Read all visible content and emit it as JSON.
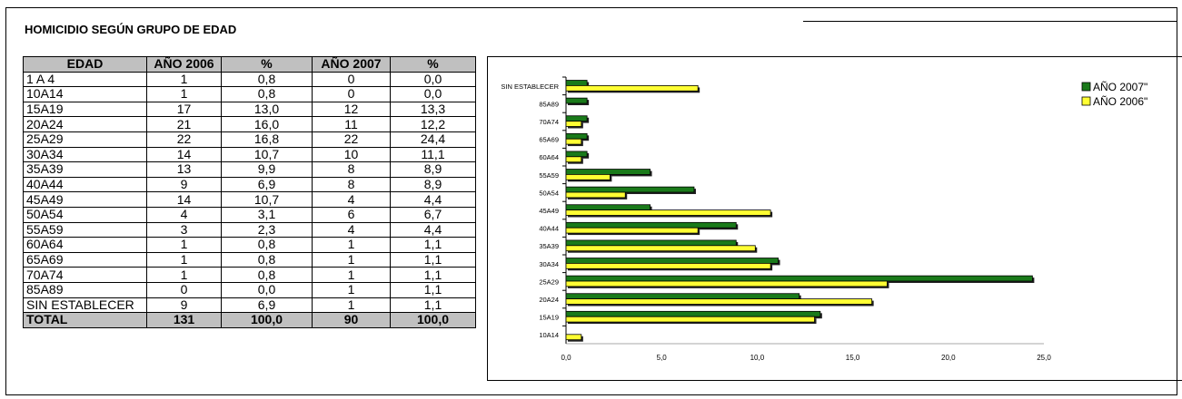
{
  "title": "HOMICIDIO SEGÚN GRUPO DE EDAD",
  "table": {
    "headers": [
      "EDAD",
      "AÑO 2006",
      "%",
      "AÑO 2007",
      "%"
    ],
    "rows": [
      [
        "1 A 4",
        "1",
        "0,8",
        "0",
        "0,0"
      ],
      [
        "10A14",
        "1",
        "0,8",
        "0",
        "0,0"
      ],
      [
        "15A19",
        "17",
        "13,0",
        "12",
        "13,3"
      ],
      [
        "20A24",
        "21",
        "16,0",
        "11",
        "12,2"
      ],
      [
        "25A29",
        "22",
        "16,8",
        "22",
        "24,4"
      ],
      [
        "30A34",
        "14",
        "10,7",
        "10",
        "11,1"
      ],
      [
        "35A39",
        "13",
        "9,9",
        "8",
        "8,9"
      ],
      [
        "40A44",
        "9",
        "6,9",
        "8",
        "8,9"
      ],
      [
        "45A49",
        "14",
        "10,7",
        "4",
        "4,4"
      ],
      [
        "50A54",
        "4",
        "3,1",
        "6",
        "6,7"
      ],
      [
        "55A59",
        "3",
        "2,3",
        "4",
        "4,4"
      ],
      [
        "60A64",
        "1",
        "0,8",
        "1",
        "1,1"
      ],
      [
        "65A69",
        "1",
        "0,8",
        "1",
        "1,1"
      ],
      [
        "70A74",
        "1",
        "0,8",
        "1",
        "1,1"
      ],
      [
        "85A89",
        "0",
        "0,0",
        "1",
        "1,1"
      ],
      [
        "SIN ESTABLECER",
        "9",
        "6,9",
        "1",
        "1,1"
      ]
    ],
    "total": [
      "TOTAL",
      "131",
      "100,0",
      "90",
      "100,0"
    ]
  },
  "chart_data": {
    "type": "bar",
    "orientation": "horizontal",
    "categories": [
      "10A14",
      "15A19",
      "20A24",
      "25A29",
      "30A34",
      "35A39",
      "40A44",
      "45A49",
      "50A54",
      "55A59",
      "60A64",
      "65A69",
      "70A74",
      "85A89",
      "SIN ESTABLECER"
    ],
    "series": [
      {
        "name": "AÑO  2007\"",
        "color": "#1a7a1a",
        "values": [
          0.0,
          13.3,
          12.2,
          24.4,
          11.1,
          8.9,
          8.9,
          4.4,
          6.7,
          4.4,
          1.1,
          1.1,
          1.1,
          1.1,
          1.1
        ]
      },
      {
        "name": "AÑO  2006\"",
        "color": "#ffff33",
        "values": [
          0.8,
          13.0,
          16.0,
          16.8,
          10.7,
          9.9,
          6.9,
          10.7,
          3.1,
          2.3,
          0.8,
          0.8,
          0.8,
          0.0,
          6.9
        ]
      }
    ],
    "xticks": [
      "0,0",
      "5,0",
      "10,0",
      "15,0",
      "20,0",
      "25,0"
    ],
    "xlim": [
      0,
      25
    ],
    "grid": false,
    "legend": "top-right"
  }
}
